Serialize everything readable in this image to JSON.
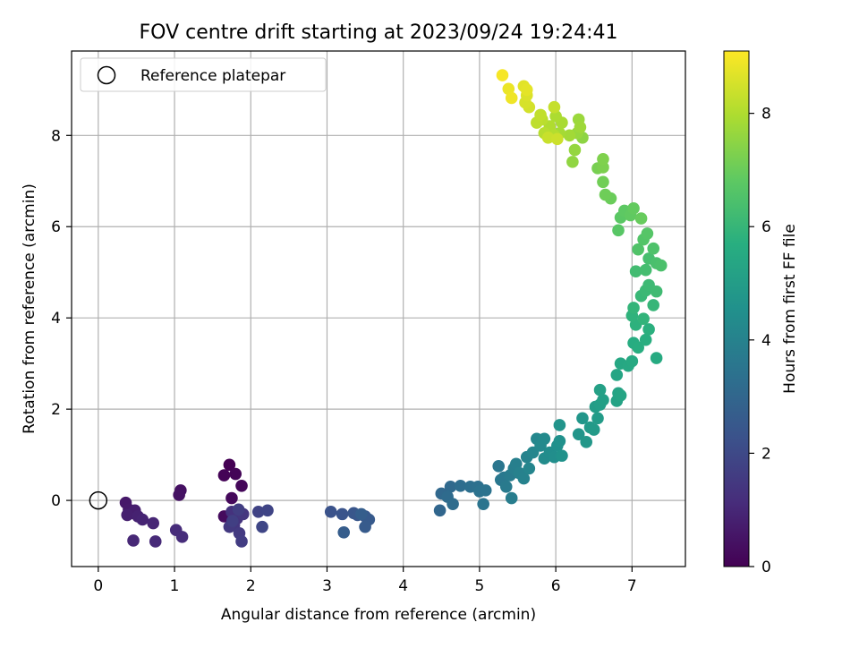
{
  "chart_data": {
    "type": "scatter",
    "title": "FOV centre drift starting at 2023/09/24 19:24:41",
    "xlabel": "Angular distance from reference (arcmin)",
    "ylabel": "Rotation from reference (arcmin)",
    "xlim": [
      -0.35,
      7.7
    ],
    "ylim": [
      -1.45,
      9.85
    ],
    "xticks": [
      0,
      1,
      2,
      3,
      4,
      5,
      6,
      7
    ],
    "yticks": [
      0,
      2,
      4,
      6,
      8
    ],
    "grid": true,
    "legend": {
      "location": "upper-left",
      "entries": [
        "Reference platepar"
      ]
    },
    "reference_point": {
      "x": 0,
      "y": 0
    },
    "colorbar": {
      "label": "Hours from first FF file",
      "range": [
        0,
        9.1
      ],
      "ticks": [
        0,
        2,
        4,
        6,
        8
      ],
      "colormap": "viridis"
    },
    "series": [
      {
        "points": [
          {
            "x": 1.72,
            "y": 0.78,
            "c": 0.0
          },
          {
            "x": 1.65,
            "y": 0.55,
            "c": 0.05
          },
          {
            "x": 1.8,
            "y": 0.58,
            "c": 0.1
          },
          {
            "x": 1.88,
            "y": 0.32,
            "c": 0.15
          },
          {
            "x": 1.75,
            "y": 0.05,
            "c": 0.2
          },
          {
            "x": 1.65,
            "y": -0.35,
            "c": 0.25
          },
          {
            "x": 1.08,
            "y": 0.22,
            "c": 0.4
          },
          {
            "x": 1.06,
            "y": 0.12,
            "c": 0.45
          },
          {
            "x": 0.36,
            "y": -0.05,
            "c": 0.6
          },
          {
            "x": 0.4,
            "y": -0.2,
            "c": 0.65
          },
          {
            "x": 0.44,
            "y": -0.28,
            "c": 0.7
          },
          {
            "x": 0.48,
            "y": -0.22,
            "c": 0.75
          },
          {
            "x": 0.38,
            "y": -0.32,
            "c": 0.8
          },
          {
            "x": 0.52,
            "y": -0.35,
            "c": 0.85
          },
          {
            "x": 0.58,
            "y": -0.42,
            "c": 0.9
          },
          {
            "x": 0.72,
            "y": -0.5,
            "c": 0.95
          },
          {
            "x": 0.46,
            "y": -0.88,
            "c": 1.0
          },
          {
            "x": 0.75,
            "y": -0.9,
            "c": 1.05
          },
          {
            "x": 1.02,
            "y": -0.65,
            "c": 1.1
          },
          {
            "x": 1.1,
            "y": -0.8,
            "c": 1.15
          },
          {
            "x": 1.75,
            "y": -0.25,
            "c": 1.3
          },
          {
            "x": 1.82,
            "y": -0.4,
            "c": 1.35
          },
          {
            "x": 1.78,
            "y": -0.55,
            "c": 1.4
          },
          {
            "x": 1.9,
            "y": -0.3,
            "c": 1.45
          },
          {
            "x": 1.72,
            "y": -0.58,
            "c": 1.5
          },
          {
            "x": 1.85,
            "y": -0.72,
            "c": 1.55
          },
          {
            "x": 1.88,
            "y": -0.9,
            "c": 1.6
          },
          {
            "x": 1.84,
            "y": -0.2,
            "c": 1.65
          },
          {
            "x": 1.76,
            "y": -0.45,
            "c": 1.7
          },
          {
            "x": 2.1,
            "y": -0.25,
            "c": 1.8
          },
          {
            "x": 2.22,
            "y": -0.22,
            "c": 1.85
          },
          {
            "x": 2.15,
            "y": -0.58,
            "c": 1.9
          },
          {
            "x": 3.05,
            "y": -0.25,
            "c": 2.3
          },
          {
            "x": 3.2,
            "y": -0.3,
            "c": 2.35
          },
          {
            "x": 3.35,
            "y": -0.28,
            "c": 2.4
          },
          {
            "x": 3.4,
            "y": -0.32,
            "c": 2.45
          },
          {
            "x": 3.5,
            "y": -0.35,
            "c": 2.5
          },
          {
            "x": 3.55,
            "y": -0.42,
            "c": 2.55
          },
          {
            "x": 3.5,
            "y": -0.58,
            "c": 2.6
          },
          {
            "x": 3.22,
            "y": -0.7,
            "c": 2.65
          },
          {
            "x": 3.45,
            "y": -0.3,
            "c": 2.7
          },
          {
            "x": 4.48,
            "y": -0.22,
            "c": 3.0
          },
          {
            "x": 4.5,
            "y": 0.15,
            "c": 3.05
          },
          {
            "x": 4.62,
            "y": 0.3,
            "c": 3.1
          },
          {
            "x": 4.58,
            "y": 0.08,
            "c": 3.15
          },
          {
            "x": 4.65,
            "y": -0.08,
            "c": 3.2
          },
          {
            "x": 4.75,
            "y": 0.32,
            "c": 3.25
          },
          {
            "x": 4.88,
            "y": 0.3,
            "c": 3.3
          },
          {
            "x": 4.98,
            "y": 0.3,
            "c": 3.35
          },
          {
            "x": 5.0,
            "y": 0.2,
            "c": 3.4
          },
          {
            "x": 5.08,
            "y": 0.22,
            "c": 3.45
          },
          {
            "x": 5.05,
            "y": -0.08,
            "c": 3.5
          },
          {
            "x": 5.25,
            "y": 0.75,
            "c": 3.55
          },
          {
            "x": 5.28,
            "y": 0.45,
            "c": 3.6
          },
          {
            "x": 5.32,
            "y": 0.5,
            "c": 3.65
          },
          {
            "x": 5.35,
            "y": 0.3,
            "c": 3.7
          },
          {
            "x": 5.4,
            "y": 0.55,
            "c": 3.75
          },
          {
            "x": 5.42,
            "y": 0.05,
            "c": 3.8
          },
          {
            "x": 5.45,
            "y": 0.7,
            "c": 3.85
          },
          {
            "x": 5.48,
            "y": 0.8,
            "c": 3.9
          },
          {
            "x": 5.52,
            "y": 0.6,
            "c": 3.95
          },
          {
            "x": 5.58,
            "y": 0.48,
            "c": 4.0
          },
          {
            "x": 5.62,
            "y": 0.95,
            "c": 4.05
          },
          {
            "x": 5.65,
            "y": 0.7,
            "c": 4.1
          },
          {
            "x": 5.7,
            "y": 1.05,
            "c": 4.15
          },
          {
            "x": 5.75,
            "y": 1.35,
            "c": 4.2
          },
          {
            "x": 5.8,
            "y": 1.2,
            "c": 4.25
          },
          {
            "x": 5.85,
            "y": 1.35,
            "c": 4.3
          },
          {
            "x": 5.85,
            "y": 0.92,
            "c": 4.35
          },
          {
            "x": 5.92,
            "y": 1.05,
            "c": 4.4
          },
          {
            "x": 5.98,
            "y": 0.95,
            "c": 4.45
          },
          {
            "x": 6.02,
            "y": 1.2,
            "c": 4.5
          },
          {
            "x": 6.05,
            "y": 1.3,
            "c": 4.55
          },
          {
            "x": 6.08,
            "y": 0.98,
            "c": 4.6
          },
          {
            "x": 6.05,
            "y": 1.65,
            "c": 4.65
          },
          {
            "x": 6.3,
            "y": 1.45,
            "c": 4.7
          },
          {
            "x": 6.35,
            "y": 1.8,
            "c": 4.75
          },
          {
            "x": 6.4,
            "y": 1.28,
            "c": 4.8
          },
          {
            "x": 6.45,
            "y": 1.6,
            "c": 4.85
          },
          {
            "x": 6.5,
            "y": 1.55,
            "c": 4.9
          },
          {
            "x": 6.55,
            "y": 1.8,
            "c": 4.95
          },
          {
            "x": 6.52,
            "y": 2.05,
            "c": 5.0
          },
          {
            "x": 6.58,
            "y": 2.1,
            "c": 5.05
          },
          {
            "x": 6.62,
            "y": 2.2,
            "c": 5.1
          },
          {
            "x": 6.58,
            "y": 2.42,
            "c": 5.15
          },
          {
            "x": 6.8,
            "y": 2.18,
            "c": 5.2
          },
          {
            "x": 6.82,
            "y": 2.35,
            "c": 5.25
          },
          {
            "x": 6.85,
            "y": 2.3,
            "c": 5.3
          },
          {
            "x": 6.8,
            "y": 2.75,
            "c": 5.35
          },
          {
            "x": 6.85,
            "y": 3.0,
            "c": 5.4
          },
          {
            "x": 6.95,
            "y": 2.95,
            "c": 5.45
          },
          {
            "x": 7.0,
            "y": 3.05,
            "c": 5.5
          },
          {
            "x": 7.32,
            "y": 3.12,
            "c": 5.55
          },
          {
            "x": 7.02,
            "y": 3.45,
            "c": 5.6
          },
          {
            "x": 7.08,
            "y": 3.35,
            "c": 5.65
          },
          {
            "x": 7.18,
            "y": 3.52,
            "c": 5.7
          },
          {
            "x": 7.22,
            "y": 3.75,
            "c": 5.75
          },
          {
            "x": 7.05,
            "y": 3.85,
            "c": 5.8
          },
          {
            "x": 7.0,
            "y": 4.05,
            "c": 5.85
          },
          {
            "x": 7.15,
            "y": 3.98,
            "c": 5.9
          },
          {
            "x": 7.02,
            "y": 4.22,
            "c": 5.95
          },
          {
            "x": 7.28,
            "y": 4.28,
            "c": 6.0
          },
          {
            "x": 7.12,
            "y": 4.48,
            "c": 6.05
          },
          {
            "x": 7.18,
            "y": 4.6,
            "c": 6.1
          },
          {
            "x": 7.22,
            "y": 4.72,
            "c": 6.15
          },
          {
            "x": 7.32,
            "y": 4.58,
            "c": 6.2
          },
          {
            "x": 7.05,
            "y": 5.02,
            "c": 6.25
          },
          {
            "x": 7.18,
            "y": 5.05,
            "c": 6.3
          },
          {
            "x": 7.22,
            "y": 5.3,
            "c": 6.35
          },
          {
            "x": 7.32,
            "y": 5.2,
            "c": 6.4
          },
          {
            "x": 7.38,
            "y": 5.15,
            "c": 6.45
          },
          {
            "x": 7.28,
            "y": 5.52,
            "c": 6.5
          },
          {
            "x": 7.08,
            "y": 5.5,
            "c": 6.55
          },
          {
            "x": 7.15,
            "y": 5.72,
            "c": 6.6
          },
          {
            "x": 7.2,
            "y": 5.85,
            "c": 6.65
          },
          {
            "x": 6.82,
            "y": 5.92,
            "c": 6.7
          },
          {
            "x": 6.85,
            "y": 6.2,
            "c": 6.75
          },
          {
            "x": 6.9,
            "y": 6.35,
            "c": 6.8
          },
          {
            "x": 6.98,
            "y": 6.25,
            "c": 6.85
          },
          {
            "x": 7.02,
            "y": 6.4,
            "c": 6.9
          },
          {
            "x": 7.12,
            "y": 6.18,
            "c": 6.95
          },
          {
            "x": 6.72,
            "y": 6.62,
            "c": 7.0
          },
          {
            "x": 6.65,
            "y": 6.7,
            "c": 7.05
          },
          {
            "x": 6.62,
            "y": 6.98,
            "c": 7.1
          },
          {
            "x": 6.55,
            "y": 7.28,
            "c": 7.2
          },
          {
            "x": 6.62,
            "y": 7.3,
            "c": 7.25
          },
          {
            "x": 6.62,
            "y": 7.48,
            "c": 7.3
          },
          {
            "x": 6.35,
            "y": 7.95,
            "c": 7.5
          },
          {
            "x": 6.22,
            "y": 7.42,
            "c": 7.55
          },
          {
            "x": 6.25,
            "y": 7.68,
            "c": 7.6
          },
          {
            "x": 6.28,
            "y": 8.05,
            "c": 7.65
          },
          {
            "x": 6.3,
            "y": 8.35,
            "c": 7.7
          },
          {
            "x": 6.32,
            "y": 8.18,
            "c": 7.75
          },
          {
            "x": 6.18,
            "y": 8.0,
            "c": 7.8
          },
          {
            "x": 6.05,
            "y": 8.05,
            "c": 7.85
          },
          {
            "x": 6.08,
            "y": 8.28,
            "c": 7.9
          },
          {
            "x": 6.0,
            "y": 8.42,
            "c": 7.95
          },
          {
            "x": 5.92,
            "y": 8.2,
            "c": 8.0
          },
          {
            "x": 5.98,
            "y": 8.0,
            "c": 8.05
          },
          {
            "x": 5.85,
            "y": 8.05,
            "c": 8.1
          },
          {
            "x": 5.82,
            "y": 8.35,
            "c": 8.15
          },
          {
            "x": 5.75,
            "y": 8.28,
            "c": 8.2
          },
          {
            "x": 5.8,
            "y": 8.45,
            "c": 8.25
          },
          {
            "x": 5.98,
            "y": 8.62,
            "c": 8.3
          },
          {
            "x": 5.9,
            "y": 7.95,
            "c": 8.35
          },
          {
            "x": 6.02,
            "y": 7.92,
            "c": 8.4
          },
          {
            "x": 5.65,
            "y": 8.62,
            "c": 8.5
          },
          {
            "x": 5.6,
            "y": 8.72,
            "c": 8.55
          },
          {
            "x": 5.62,
            "y": 8.88,
            "c": 8.6
          },
          {
            "x": 5.58,
            "y": 9.08,
            "c": 8.7
          },
          {
            "x": 5.62,
            "y": 9.0,
            "c": 8.75
          },
          {
            "x": 5.38,
            "y": 9.02,
            "c": 8.85
          },
          {
            "x": 5.42,
            "y": 8.82,
            "c": 8.9
          },
          {
            "x": 5.3,
            "y": 9.32,
            "c": 9.0
          }
        ]
      }
    ]
  }
}
